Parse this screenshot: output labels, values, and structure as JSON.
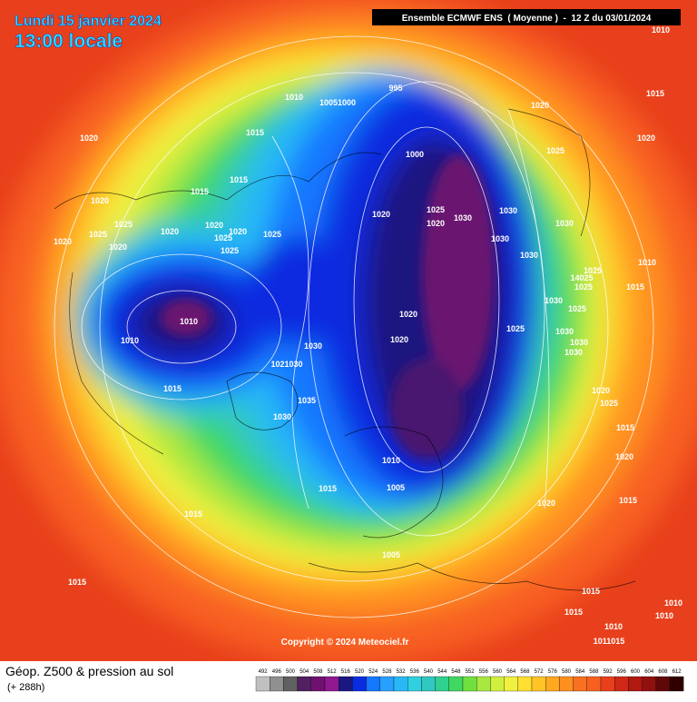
{
  "header": {
    "date": "Lundi 15 janvier 2024",
    "time": "13:00 locale",
    "model": "Ensemble ECMWF ENS  ( Moyenne )  -  12 Z du 03/01/2024"
  },
  "map": {
    "copyright": "Copyright © 2024 Meteociel.fr",
    "isobar_labels": [
      "1010",
      "1015",
      "1020",
      "995",
      "1010",
      "10051000",
      "1020",
      "1000",
      "1025",
      "1015",
      "1015",
      "1015",
      "1020",
      "1020",
      "1025",
      "1025",
      "1020",
      "1020",
      "1020",
      "1020",
      "1020",
      "1025",
      "1025",
      "1025",
      "1020",
      "1025",
      "1020",
      "1030",
      "1030",
      "1030",
      "1030",
      "1030",
      "1010",
      "1025",
      "14025",
      "1025",
      "1015",
      "1030",
      "1025",
      "1010",
      "1010",
      "1020",
      "1025",
      "1030",
      "1020",
      "1030",
      "1030",
      "1030",
      "1021030",
      "1015",
      "1035",
      "1020",
      "1025",
      "1030",
      "1015",
      "1010",
      "1020",
      "1015",
      "1005",
      "1015",
      "1020",
      "1015",
      "1005",
      "1015",
      "1015",
      "1010",
      "1015",
      "1010",
      "1010",
      "1011015"
    ]
  },
  "footer": {
    "title": "Géop. Z500 & pression au sol",
    "lead": "(+ 288h)"
  },
  "legend": {
    "values": [
      492,
      496,
      500,
      504,
      508,
      512,
      516,
      520,
      524,
      528,
      532,
      536,
      540,
      544,
      548,
      552,
      556,
      560,
      564,
      568,
      572,
      576,
      580,
      584,
      588,
      592,
      596,
      600,
      604,
      608,
      612
    ]
  }
}
